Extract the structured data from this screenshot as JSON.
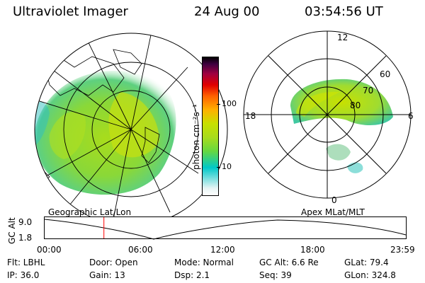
{
  "header": {
    "instrument": "Ultraviolet Imager",
    "date": "24 Aug 00",
    "time": "03:54:56 UT"
  },
  "colorbar": {
    "unit_label": "photon cm⁻²s⁻¹",
    "ticks": [
      "100",
      "10"
    ],
    "scale": "log",
    "colors": [
      "#ffffff",
      "#00c8c8",
      "#66d840",
      "#c8e000",
      "#ffb000",
      "#ff6000",
      "#e00000",
      "#a00040",
      "#400040",
      "#000000"
    ]
  },
  "left_panel": {
    "caption": "Geographic Lat/Lon"
  },
  "right_panel": {
    "caption": "Apex MLat/MLT",
    "mlt_labels": {
      "top": "12",
      "bottom": "0",
      "left": "18",
      "right": "6"
    },
    "lat_labels": [
      "60",
      "70",
      "80"
    ]
  },
  "orbit": {
    "y_axis_title": "GC Alt",
    "y_ticks": [
      "9.0",
      "1.8"
    ],
    "x_ticks": [
      "00:00",
      "06:00",
      "12:00",
      "18:00",
      "23:59"
    ],
    "marker_color": "#ff0000",
    "marker_time_fraction": 0.1641
  },
  "status": {
    "flt": "Flt: LBHL",
    "door": "Door: Open",
    "mode": "Mode: Normal",
    "gcalt": "GC Alt: 6.6 Re",
    "glat": "GLat:  79.4",
    "ip": "IP: 36.0",
    "gain": "Gain: 13",
    "dsp": "Dsp:     2.1",
    "seq": "Seq: 39",
    "glon": "GLon: 324.8"
  }
}
